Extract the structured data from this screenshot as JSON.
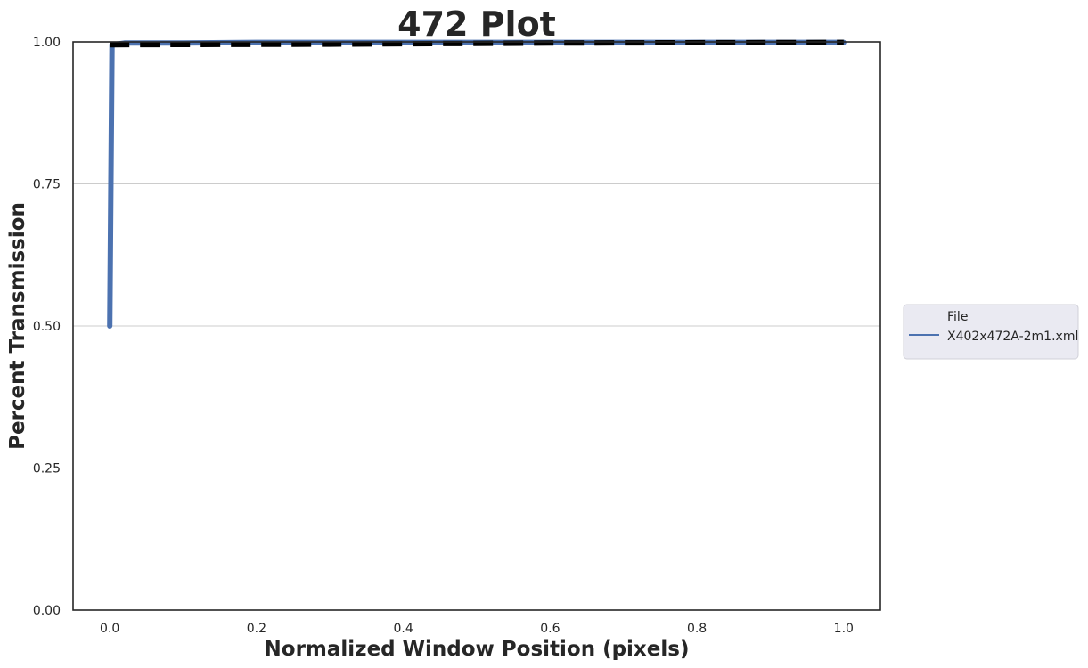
{
  "chart_data": {
    "type": "line",
    "title": "472 Plot",
    "xlabel": "Normalized Window Position (pixels)",
    "ylabel": "Percent Transmission",
    "xlim": [
      -0.05,
      1.05
    ],
    "ylim": [
      0.0,
      1.0
    ],
    "xticks": [
      "0.0",
      "0.2",
      "0.4",
      "0.6",
      "0.8",
      "1.0"
    ],
    "xtick_values": [
      0.0,
      0.2,
      0.4,
      0.6,
      0.8,
      1.0
    ],
    "yticks": [
      "0.00",
      "0.25",
      "0.50",
      "0.75",
      "1.00"
    ],
    "ytick_values": [
      0.0,
      0.25,
      0.5,
      0.75,
      1.0
    ],
    "grid": "horizontal",
    "legend": {
      "title": "File",
      "placement": "center-right outside",
      "entries": [
        "X402x472A-2m1.xml"
      ]
    },
    "series": [
      {
        "name": "X402x472A-2m1.xml",
        "color": "#4c72b0",
        "style": "solid",
        "x": [
          0.0,
          0.003,
          0.02,
          0.1,
          0.2,
          0.3,
          0.4,
          0.5,
          0.6,
          0.7,
          0.8,
          0.9,
          1.0
        ],
        "y": [
          0.5,
          0.995,
          0.998,
          0.998,
          0.999,
          0.999,
          0.999,
          0.999,
          0.999,
          0.999,
          0.999,
          0.999,
          0.999
        ]
      },
      {
        "color": "#000000",
        "style": "dashed",
        "x": [
          0.0,
          0.3,
          0.6,
          1.0
        ],
        "y": [
          0.995,
          0.996,
          0.998,
          0.999
        ]
      }
    ]
  }
}
